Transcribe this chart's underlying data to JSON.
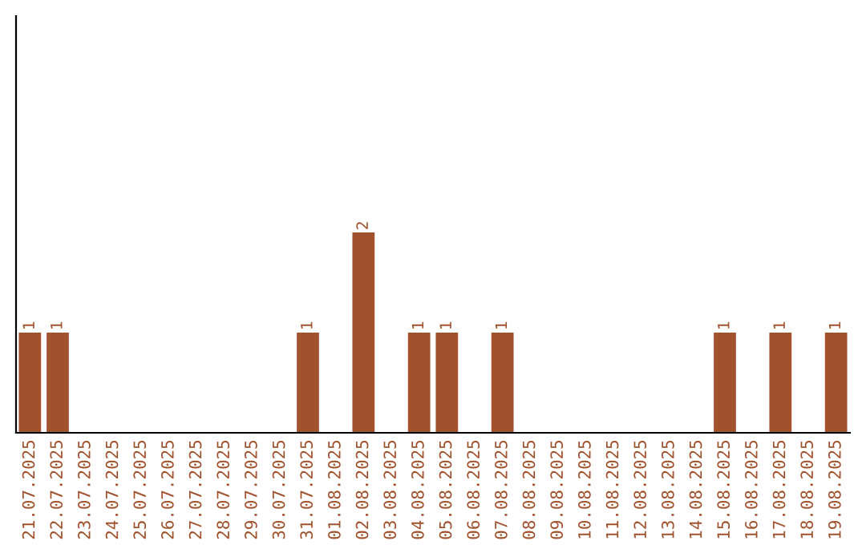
{
  "chart_data": {
    "type": "bar",
    "categories": [
      "21.07.2025",
      "22.07.2025",
      "23.07.2025",
      "24.07.2025",
      "25.07.2025",
      "26.07.2025",
      "27.07.2025",
      "28.07.2025",
      "29.07.2025",
      "30.07.2025",
      "31.07.2025",
      "01.08.2025",
      "02.08.2025",
      "03.08.2025",
      "04.08.2025",
      "05.08.2025",
      "06.08.2025",
      "07.08.2025",
      "08.08.2025",
      "09.08.2025",
      "10.08.2025",
      "11.08.2025",
      "12.08.2025",
      "13.08.2025",
      "14.08.2025",
      "15.08.2025",
      "16.08.2025",
      "17.08.2025",
      "18.08.2025",
      "19.08.2025"
    ],
    "values": [
      1,
      1,
      0,
      0,
      0,
      0,
      0,
      0,
      0,
      0,
      1,
      0,
      2,
      0,
      1,
      1,
      0,
      1,
      0,
      0,
      0,
      0,
      0,
      0,
      0,
      1,
      0,
      1,
      0,
      1
    ],
    "value_labels": [
      "1",
      "1",
      null,
      null,
      null,
      null,
      null,
      null,
      null,
      null,
      "1",
      null,
      "2",
      null,
      "1",
      "1",
      null,
      "1",
      null,
      null,
      null,
      null,
      null,
      null,
      null,
      "1",
      null,
      "1",
      null,
      "1"
    ],
    "color": "#a0522d",
    "ylim": [
      0,
      4.16
    ],
    "tick_labels": "x",
    "grid": false,
    "legend": false
  }
}
